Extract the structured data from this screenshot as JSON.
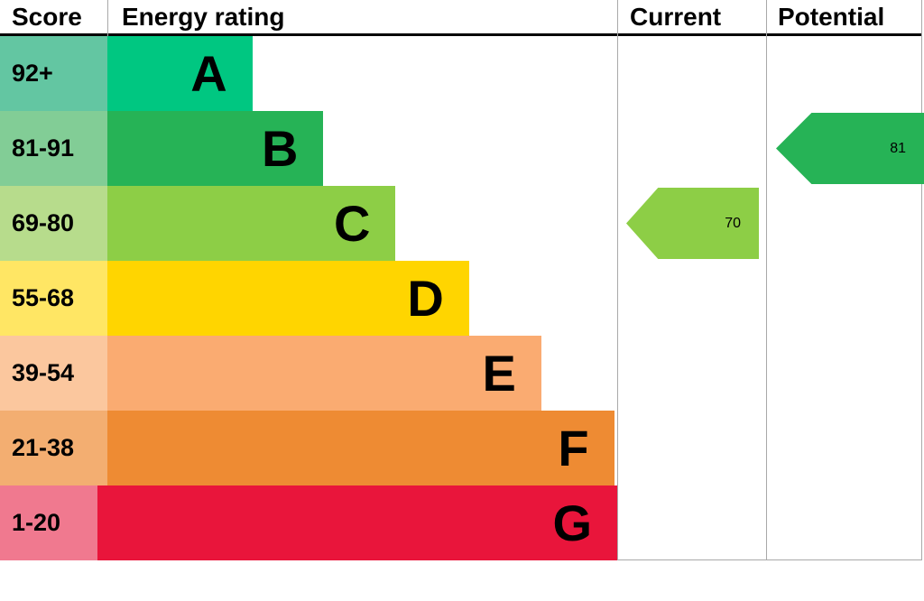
{
  "header": {
    "score": "Score",
    "rating": "Energy rating",
    "current": "Current",
    "potential": "Potential"
  },
  "bands": [
    {
      "range": "92+",
      "letter": "A",
      "bar_color": "#00c781",
      "score_color": "#63c6a2",
      "width_pct": 23.5
    },
    {
      "range": "81-91",
      "letter": "B",
      "bar_color": "#26b356",
      "score_color": "#82cd96",
      "width_pct": 35.0
    },
    {
      "range": "69-80",
      "letter": "C",
      "bar_color": "#8dce46",
      "score_color": "#b7dc8c",
      "width_pct": 46.7
    },
    {
      "range": "55-68",
      "letter": "D",
      "bar_color": "#ffd500",
      "score_color": "#ffe664",
      "width_pct": 58.6
    },
    {
      "range": "39-54",
      "letter": "E",
      "bar_color": "#faab71",
      "score_color": "#fbc79e",
      "width_pct": 70.3
    },
    {
      "range": "21-38",
      "letter": "F",
      "bar_color": "#ee8b33",
      "score_color": "#f3ae71",
      "width_pct": 82.1
    },
    {
      "range": "1-20",
      "letter": "G",
      "bar_color": "#e9153b",
      "score_color": "#f0798f",
      "width_pct": 93.8
    }
  ],
  "current": {
    "value": "70",
    "band": "C",
    "color": "#8dce46",
    "band_index": 2
  },
  "potential": {
    "value": "81",
    "band": "B",
    "color": "#26b356",
    "band_index": 1
  },
  "chart_data": {
    "type": "bar",
    "title": "Energy rating",
    "categories": [
      "A",
      "B",
      "C",
      "D",
      "E",
      "F",
      "G"
    ],
    "score_ranges": [
      "92+",
      "81-91",
      "69-80",
      "55-68",
      "39-54",
      "21-38",
      "1-20"
    ],
    "colors": [
      "#00c781",
      "#26b356",
      "#8dce46",
      "#ffd500",
      "#faab71",
      "#ee8b33",
      "#e9153b"
    ],
    "current": {
      "value": 70,
      "band": "C"
    },
    "potential": {
      "value": 81,
      "band": "B"
    },
    "legend_position": "none",
    "grid": false
  }
}
